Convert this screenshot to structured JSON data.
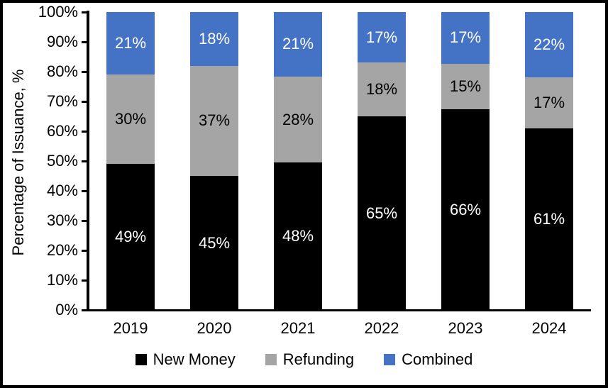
{
  "chart_data": {
    "type": "bar",
    "stacked": true,
    "percent_stacked": true,
    "ylabel": "Percentage of Issuance, %",
    "ylim": [
      0,
      100
    ],
    "yticks": [
      "0%",
      "10%",
      "20%",
      "30%",
      "40%",
      "50%",
      "60%",
      "70%",
      "80%",
      "90%",
      "100%"
    ],
    "grid": false,
    "legend_position": "bottom",
    "categories": [
      "2019",
      "2020",
      "2021",
      "2022",
      "2023",
      "2024"
    ],
    "series": [
      {
        "name": "New Money",
        "color": "#000000",
        "label_color": "#FFFFFF",
        "values": [
          49,
          45,
          48,
          65,
          66,
          61
        ],
        "labels": [
          "49%",
          "45%",
          "48%",
          "65%",
          "66%",
          "61%"
        ]
      },
      {
        "name": "Refunding",
        "color": "#A5A5A5",
        "label_color": "#000000",
        "values": [
          30,
          37,
          28,
          18,
          15,
          17
        ],
        "labels": [
          "30%",
          "37%",
          "28%",
          "18%",
          "15%",
          "17%"
        ]
      },
      {
        "name": "Combined",
        "color": "#4472C4",
        "label_color": "#FFFFFF",
        "values": [
          21,
          18,
          21,
          17,
          17,
          22
        ],
        "labels": [
          "21%",
          "18%",
          "21%",
          "17%",
          "17%",
          "22%"
        ]
      }
    ]
  },
  "colors": {
    "axis": "#000000",
    "background": "#FFFFFF",
    "frame_border": "#000000",
    "accent_blue": "#4472C4",
    "accent_gray": "#A5A5A5",
    "accent_black": "#000000"
  }
}
